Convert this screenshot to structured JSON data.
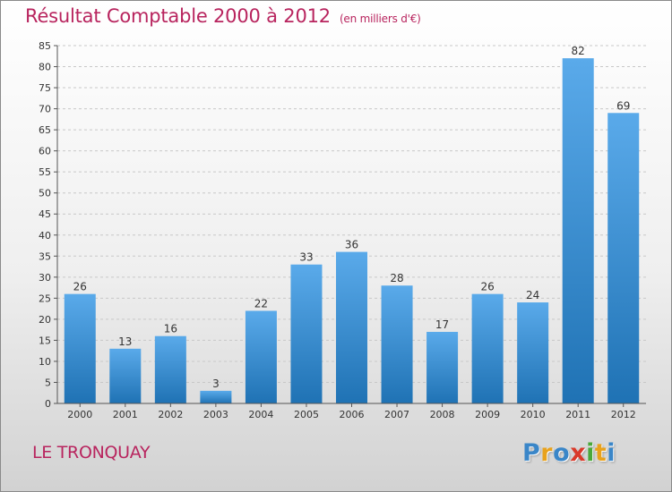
{
  "header": {
    "title": "Résultat Comptable 2000 à 2012",
    "subtitle": "(en milliers d'€)"
  },
  "footer": {
    "commune": "LE TRONQUAY",
    "logo_letters": [
      "P",
      "r",
      "o",
      "x",
      "i",
      "t",
      "i"
    ],
    "logo_colors": [
      "#3a86c8",
      "#e8a21d",
      "#3a86c8",
      "#d93a2a",
      "#4aa83a",
      "#e8a21d",
      "#3a86c8"
    ]
  },
  "colors": {
    "accent": "#b8245e",
    "bar_top": "#5aaaea",
    "bar_bottom": "#1f72b4",
    "grid": "#c8c8c8"
  },
  "chart_data": {
    "type": "bar",
    "title": "Résultat Comptable 2000 à 2012",
    "subtitle": "(en milliers d'€)",
    "xlabel": "",
    "ylabel": "",
    "categories": [
      "2000",
      "2001",
      "2002",
      "2003",
      "2004",
      "2005",
      "2006",
      "2007",
      "2008",
      "2009",
      "2010",
      "2011",
      "2012"
    ],
    "values": [
      26,
      13,
      16,
      3,
      22,
      33,
      36,
      28,
      17,
      26,
      24,
      82,
      69
    ],
    "ylim": [
      0,
      85
    ],
    "yticks": [
      0,
      5,
      10,
      15,
      20,
      25,
      30,
      35,
      40,
      45,
      50,
      55,
      60,
      65,
      70,
      75,
      80,
      85
    ],
    "grid": true,
    "legend": "none"
  }
}
